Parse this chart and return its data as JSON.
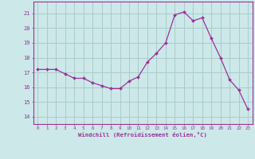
{
  "x": [
    0,
    1,
    2,
    3,
    4,
    5,
    6,
    7,
    8,
    9,
    10,
    11,
    12,
    13,
    14,
    15,
    16,
    17,
    18,
    19,
    20,
    21,
    22,
    23
  ],
  "y": [
    17.2,
    17.2,
    17.2,
    16.9,
    16.6,
    16.6,
    16.3,
    16.1,
    15.9,
    15.9,
    16.4,
    16.7,
    17.7,
    18.3,
    19.0,
    20.9,
    21.1,
    20.5,
    20.7,
    19.3,
    18.0,
    16.5,
    15.8,
    14.5
  ],
  "line_color": "#993399",
  "marker_color": "#993399",
  "bg_color": "#cce8e8",
  "grid_color": "#aacccc",
  "xlabel": "Windchill (Refroidissement éolien,°C)",
  "ylabel_ticks": [
    14,
    15,
    16,
    17,
    18,
    19,
    20,
    21
  ],
  "ylim": [
    13.5,
    21.8
  ],
  "xlim": [
    -0.5,
    23.5
  ],
  "axis_color": "#993399",
  "tick_color": "#993399",
  "label_color": "#993399"
}
